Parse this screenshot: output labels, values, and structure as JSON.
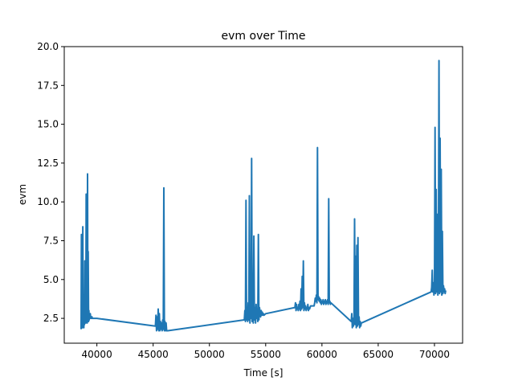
{
  "chart_data": {
    "type": "line",
    "title": "evm over Time",
    "xlabel": "Time [s]",
    "ylabel": "evm",
    "xlim": [
      37100,
      72500
    ],
    "ylim": [
      0.9,
      20.0
    ],
    "x_ticks": [
      40000,
      45000,
      50000,
      55000,
      60000,
      65000,
      70000
    ],
    "y_ticks": [
      2.5,
      5.0,
      7.5,
      10.0,
      12.5,
      15.0,
      17.5,
      20.0
    ],
    "x_tick_labels": [
      "40000",
      "45000",
      "50000",
      "55000",
      "60000",
      "65000",
      "70000"
    ],
    "y_tick_labels": [
      "2.5",
      "5.0",
      "7.5",
      "10.0",
      "12.5",
      "15.0",
      "17.5",
      "20.0"
    ],
    "grid": false,
    "color": "#1f77b4",
    "series": [
      {
        "x": [
          38600,
          38630,
          38660,
          38690,
          38720,
          38750,
          38780,
          38810,
          38840,
          38870,
          38900,
          38930,
          38960,
          38990,
          39020,
          39050,
          39080,
          39110,
          39140,
          39170,
          39200,
          39230,
          39260,
          39290,
          39320,
          39350,
          39380,
          39410,
          39440,
          39470,
          39500,
          39530,
          39560,
          39590,
          40000,
          45200,
          45250,
          45300,
          45350,
          45400,
          45450,
          45500,
          45550,
          45600,
          45650,
          45700,
          45750,
          45800,
          45850,
          45900,
          45950,
          46000,
          46050,
          46100,
          46150,
          46200,
          46300,
          53100,
          53150,
          53200,
          53250,
          53300,
          53350,
          53400,
          53450,
          53500,
          53550,
          53600,
          53650,
          53700,
          53750,
          53800,
          53850,
          53900,
          53950,
          54000,
          54050,
          54100,
          54150,
          54200,
          54250,
          54300,
          54350,
          54400,
          54450,
          54500,
          54550,
          54600,
          54650,
          54700,
          54750,
          54800,
          54850,
          55000,
          57600,
          57650,
          57700,
          57750,
          57800,
          57850,
          57900,
          57950,
          58000,
          58050,
          58100,
          58150,
          58200,
          58250,
          58300,
          58350,
          58400,
          58450,
          58500,
          58550,
          58600,
          58650,
          58700,
          58750,
          58800,
          58850,
          58900,
          59000,
          59300,
          59350,
          59400,
          59450,
          59500,
          59550,
          59600,
          59650,
          59700,
          59750,
          59800,
          59850,
          59900,
          59950,
          60000,
          60050,
          60100,
          60150,
          60200,
          60250,
          60300,
          60350,
          60400,
          60450,
          60500,
          60550,
          60600,
          60650,
          60700,
          60750,
          60800,
          62600,
          62650,
          62700,
          62750,
          62800,
          62850,
          62900,
          62950,
          63000,
          63050,
          63100,
          63150,
          63200,
          63250,
          63300,
          63350,
          63400,
          63450,
          63500,
          69700,
          69750,
          69800,
          69850,
          69900,
          69950,
          70000,
          70050,
          70100,
          70150,
          70200,
          70250,
          70300,
          70350,
          70400,
          70450,
          70500,
          70550,
          70600,
          70650,
          70700,
          70750,
          70800,
          70850,
          70900,
          70950,
          71000
        ],
        "y": [
          1.8,
          7.9,
          2.0,
          3.5,
          1.9,
          8.4,
          2.2,
          3.6,
          1.9,
          3.0,
          2.1,
          6.2,
          2.3,
          3.3,
          2.2,
          10.5,
          2.4,
          3.0,
          2.2,
          11.8,
          2.6,
          6.8,
          2.3,
          3.0,
          2.4,
          2.7,
          2.5,
          2.8,
          2.6,
          2.5,
          2.6,
          2.5,
          2.6,
          2.5,
          2.5,
          2.0,
          2.7,
          1.7,
          2.6,
          1.8,
          3.1,
          1.7,
          2.8,
          1.7,
          2.3,
          1.8,
          2.2,
          1.7,
          2.4,
          1.8,
          10.9,
          1.7,
          2.3,
          1.7,
          2.2,
          1.7,
          1.7,
          2.4,
          3.0,
          2.3,
          10.1,
          2.4,
          3.2,
          2.3,
          3.5,
          2.4,
          10.4,
          2.2,
          3.0,
          2.5,
          12.8,
          2.3,
          3.1,
          2.2,
          7.8,
          2.4,
          3.2,
          2.2,
          3.4,
          2.5,
          3.0,
          2.3,
          7.9,
          2.4,
          3.2,
          2.9,
          2.6,
          3.0,
          2.7,
          2.9,
          2.7,
          2.8,
          2.7,
          2.8,
          3.2,
          3.5,
          3.0,
          3.4,
          3.1,
          3.2,
          3.0,
          3.4,
          3.1,
          3.6,
          3.0,
          4.4,
          3.1,
          5.2,
          3.2,
          6.2,
          3.0,
          3.5,
          3.1,
          3.3,
          3.0,
          3.2,
          3.1,
          3.4,
          3.0,
          3.2,
          3.1,
          3.3,
          3.3,
          3.5,
          3.8,
          3.6,
          4.0,
          3.5,
          13.5,
          3.7,
          3.9,
          3.6,
          3.8,
          3.5,
          3.7,
          3.4,
          3.6,
          3.5,
          3.7,
          3.4,
          3.6,
          3.5,
          3.7,
          3.4,
          3.6,
          3.5,
          3.7,
          3.4,
          10.2,
          3.5,
          3.6,
          3.4,
          3.5,
          2.3,
          2.8,
          1.9,
          2.5,
          2.0,
          2.6,
          8.9,
          2.1,
          6.5,
          1.9,
          7.2,
          2.0,
          7.7,
          2.1,
          2.6,
          1.9,
          2.3,
          2.0,
          2.2,
          4.2,
          4.5,
          5.6,
          4.2,
          4.8,
          4.0,
          4.6,
          14.8,
          4.1,
          10.8,
          4.2,
          9.2,
          4.0,
          6.5,
          19.1,
          4.1,
          14.1,
          4.2,
          12.1,
          4.0,
          8.1,
          4.1,
          4.6,
          4.2,
          4.4,
          4.1,
          4.3
        ]
      }
    ]
  }
}
